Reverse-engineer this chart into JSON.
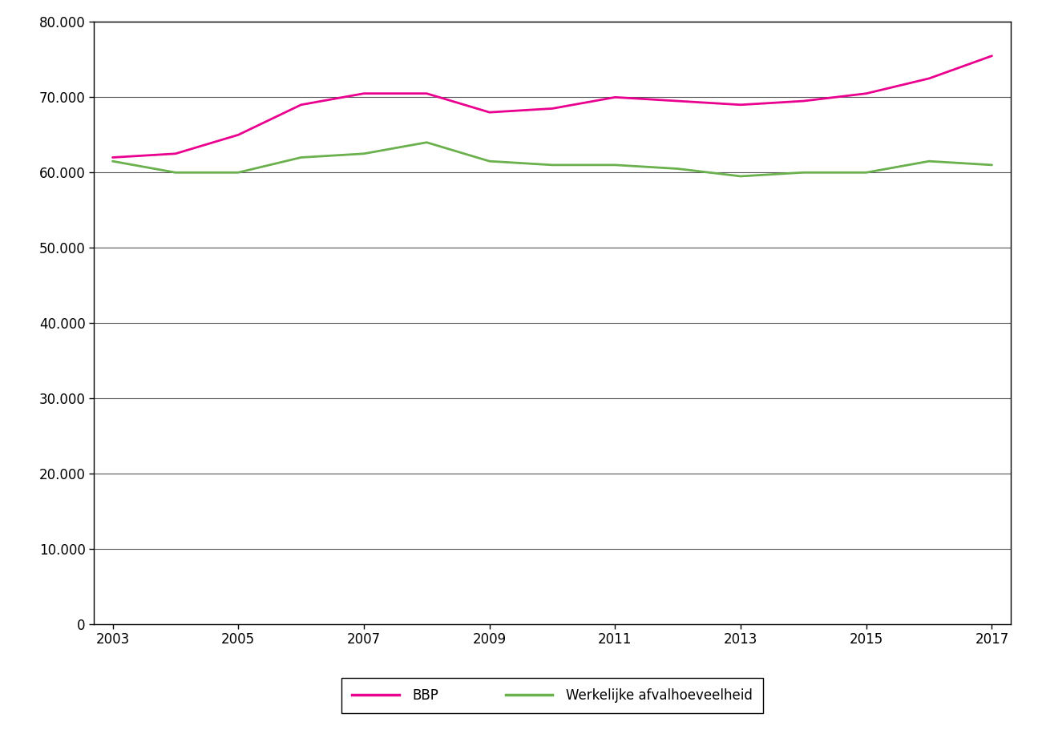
{
  "years": [
    2003,
    2004,
    2005,
    2006,
    2007,
    2008,
    2009,
    2010,
    2011,
    2012,
    2013,
    2014,
    2015,
    2016,
    2017
  ],
  "bbp": [
    62000,
    62500,
    65000,
    69000,
    70500,
    70500,
    68000,
    68500,
    70000,
    69500,
    69000,
    69500,
    70500,
    72500,
    75500
  ],
  "werkelijk": [
    61500,
    60000,
    60000,
    62000,
    62500,
    64000,
    61500,
    61000,
    61000,
    60500,
    59500,
    60000,
    60000,
    61500,
    61000
  ],
  "bbp_color": "#e9008e",
  "werkelijk_color": "#6ab04c",
  "background_color": "#ffffff",
  "ylim": [
    0,
    80000
  ],
  "yticks": [
    0,
    10000,
    20000,
    30000,
    40000,
    50000,
    60000,
    70000,
    80000
  ],
  "xlim_min": 2003,
  "xlim_max": 2017,
  "xticks": [
    2003,
    2005,
    2007,
    2009,
    2011,
    2013,
    2015,
    2017
  ],
  "legend_bbp": "BBP",
  "legend_werkelijk": "Werkelijke afvalhoeveelheid",
  "line_width": 2.0,
  "grid_color": "#555555",
  "tick_fontsize": 12,
  "legend_fontsize": 12
}
